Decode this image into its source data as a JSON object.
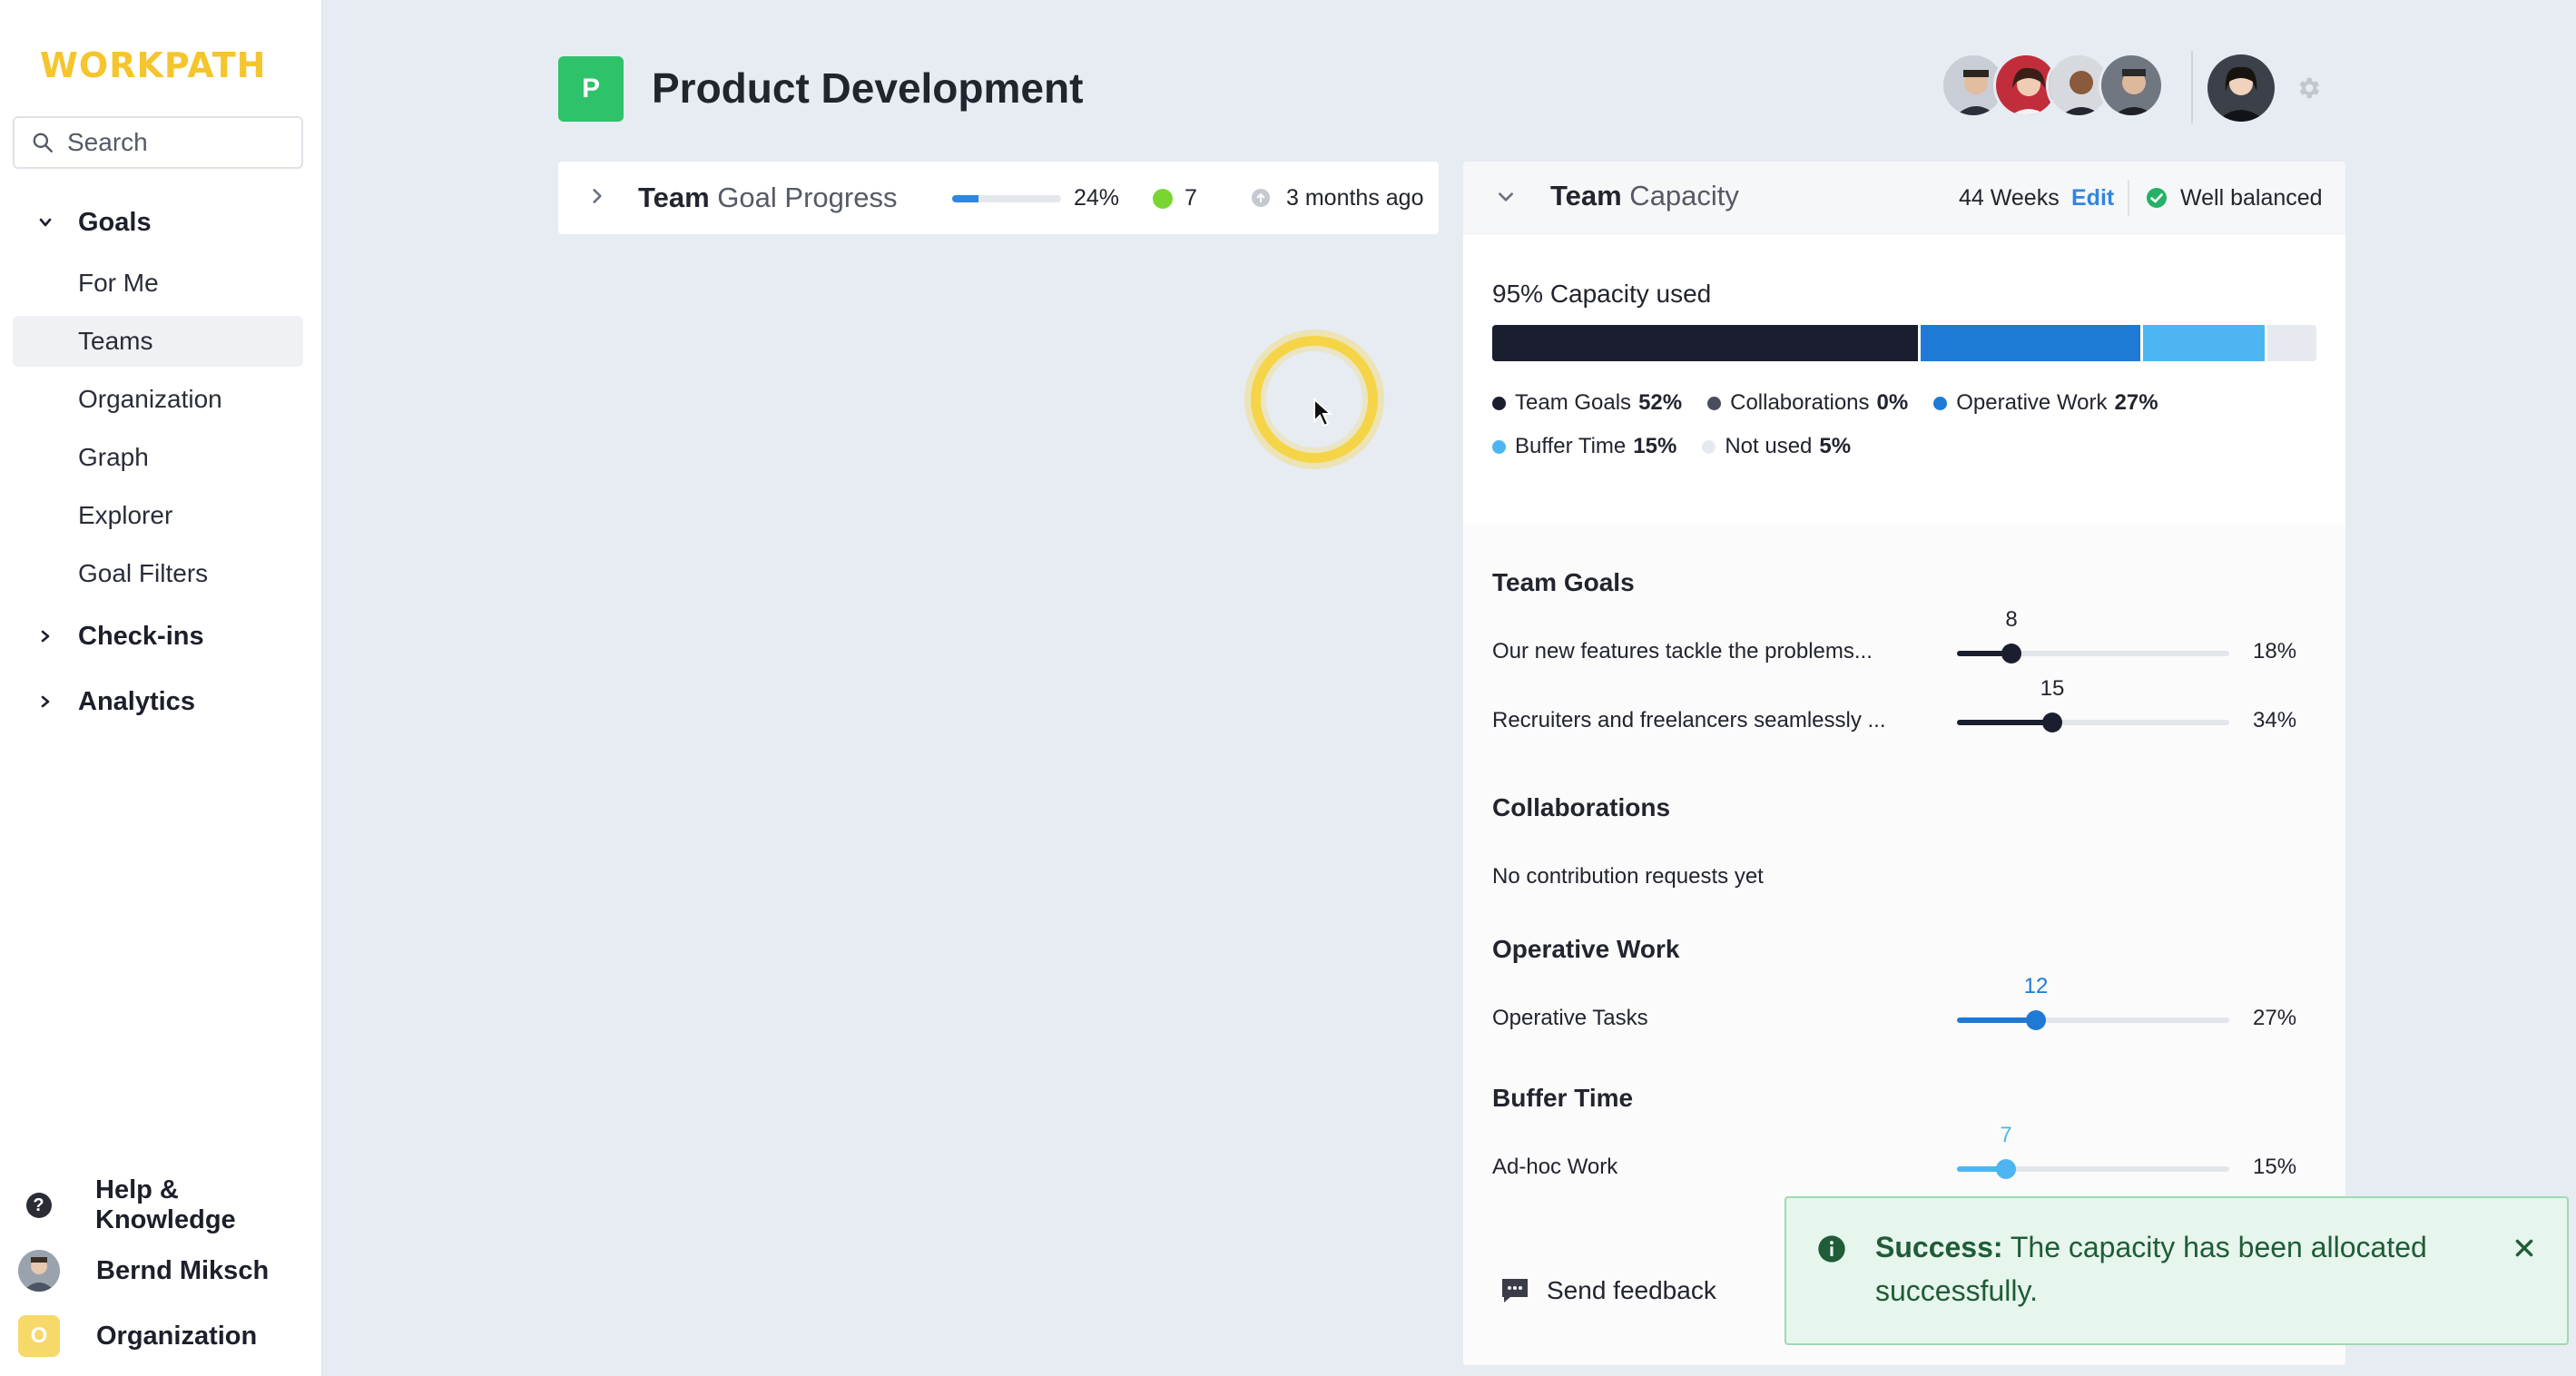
{
  "sidebar": {
    "logo": "WORKPATH",
    "search": {
      "placeholder": "Search",
      "value": ""
    },
    "groups": [
      {
        "label": "Goals",
        "expanded": true,
        "items": [
          "For Me",
          "Teams",
          "Organization",
          "Graph",
          "Explorer",
          "Goal Filters"
        ],
        "active": "Teams"
      },
      {
        "label": "Check-ins",
        "expanded": false
      },
      {
        "label": "Analytics",
        "expanded": false
      }
    ],
    "bottom": {
      "help": "Help & Knowledge",
      "user": "Bernd Miksch",
      "org": "Organization",
      "org_initial": "O"
    }
  },
  "header": {
    "team_initial": "P",
    "title": "Product Development",
    "team_color": "#2ec26a"
  },
  "goal_progress": {
    "title_bold": "Team",
    "title_rest": " Goal Progress",
    "progress": 0.24,
    "progress_label": "24%",
    "count": "7",
    "updated": "3 months ago"
  },
  "capacity": {
    "title_bold": "Team",
    "title_rest": " Capacity",
    "weeks": "44 Weeks",
    "edit": "Edit",
    "status": "Well balanced",
    "used_label": "95% Capacity used",
    "legend": [
      {
        "name": "Team Goals",
        "pct": "52%",
        "value": 52,
        "color": "#1b1e2e"
      },
      {
        "name": "Collaborations",
        "pct": "0%",
        "value": 0,
        "color": "#4a4d5c"
      },
      {
        "name": "Operative Work",
        "pct": "27%",
        "value": 27,
        "color": "#1f7ad6"
      },
      {
        "name": "Buffer Time",
        "pct": "15%",
        "value": 15,
        "color": "#4db6f2"
      },
      {
        "name": "Not used",
        "pct": "5%",
        "value": 5,
        "color": "#e6e9ef"
      }
    ],
    "sections": {
      "team_goals": {
        "title": "Team Goals",
        "rows": [
          {
            "label": "Our new features tackle the problems...",
            "value": "8",
            "pct": "18%",
            "fraction": 0.2,
            "color": "#1b1e2e"
          },
          {
            "label": "Recruiters and freelancers seamlessly ...",
            "value": "15",
            "pct": "34%",
            "fraction": 0.35,
            "color": "#1b1e2e"
          }
        ]
      },
      "collaborations": {
        "title": "Collaborations",
        "empty": "No contribution requests yet"
      },
      "operative_work": {
        "title": "Operative Work",
        "rows": [
          {
            "label": "Operative Tasks",
            "value": "12",
            "pct": "27%",
            "fraction": 0.29,
            "color": "#1f7ad6"
          }
        ]
      },
      "buffer_time": {
        "title": "Buffer Time",
        "rows": [
          {
            "label": "Ad-hoc Work",
            "value": "7",
            "pct": "15%",
            "fraction": 0.18,
            "color": "#4db6f2"
          }
        ]
      }
    },
    "feedback": "Send feedback"
  },
  "toast": {
    "title": "Success:",
    "message": " The capacity has been allocated successfully."
  }
}
